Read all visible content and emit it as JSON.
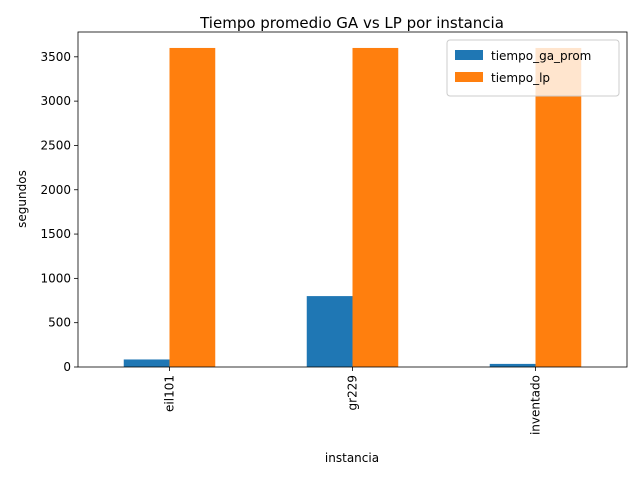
{
  "chart_data": {
    "type": "bar",
    "title": "Tiempo promedio GA vs LP por instancia",
    "xlabel": "instancia",
    "ylabel": "segundos",
    "categories": [
      "eil101",
      "gr229",
      "inventado"
    ],
    "series": [
      {
        "name": "tiempo_ga_prom",
        "color": "#1f77b4",
        "values": [
          85,
          800,
          35
        ]
      },
      {
        "name": "tiempo_lp",
        "color": "#ff7f0e",
        "values": [
          3600,
          3600,
          3600
        ]
      }
    ],
    "ylim": [
      0,
      3780
    ],
    "yticks": [
      0,
      500,
      1000,
      1500,
      2000,
      2500,
      3000,
      3500
    ],
    "grid": false,
    "legend_position": "top-right"
  }
}
